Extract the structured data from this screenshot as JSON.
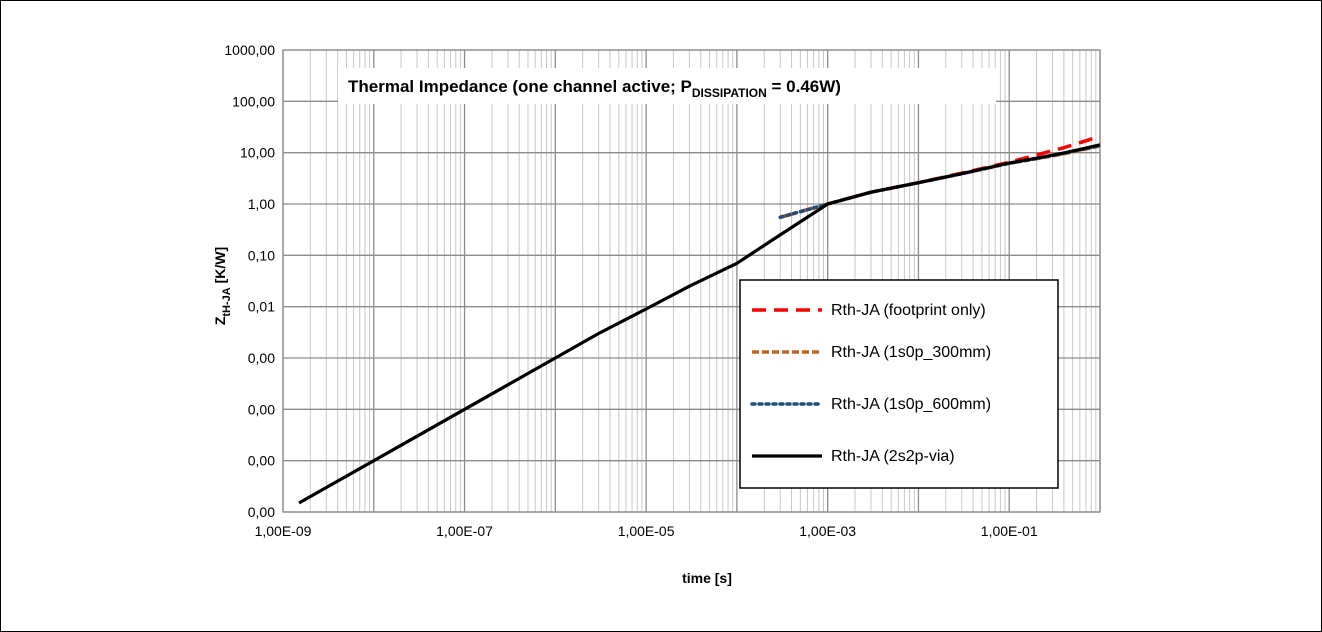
{
  "chart_data": {
    "type": "line",
    "title": {
      "main": "Thermal Impedance (one channel active; P",
      "sub": "DISSIPATION",
      "tail": " = 0.46W)"
    },
    "xlabel": "time  [s]",
    "ylabel": {
      "main": "Z",
      "sub": "tH-JA",
      "tail": " [K/W]"
    },
    "x_scale": "log",
    "y_scale": "log",
    "xlim": [
      1e-09,
      1
    ],
    "ylim": [
      1e-06,
      1000
    ],
    "x_tick_labels": [
      "1,00E-09",
      "1,00E-07",
      "1,00E-05",
      "1,00E-03",
      "1,00E-01"
    ],
    "x_tick_values": [
      1e-09,
      1e-07,
      1e-05,
      0.001,
      0.1
    ],
    "y_tick_labels": [
      "1000,00",
      "100,00",
      "10,00",
      "1,00",
      "0,10",
      "0,01",
      "0,00",
      "0,00",
      "0,00",
      "0,00"
    ],
    "y_tick_values": [
      1000,
      100,
      10,
      1,
      0.1,
      0.01,
      0.001,
      0.0001,
      1e-05,
      1e-06
    ],
    "grid": true,
    "legend_position": "right",
    "series": [
      {
        "name": "Rth-JA (footprint only)",
        "color": "#ff0000",
        "style": "dashed",
        "x": [
          0.0003,
          0.001,
          0.003,
          0.01,
          0.03,
          0.1,
          0.2,
          0.4,
          0.7,
          1.0
        ],
        "y": [
          0.55,
          1.0,
          1.7,
          2.6,
          4.0,
          6.5,
          9.0,
          12.5,
          17.0,
          21.0
        ]
      },
      {
        "name": "Rth-JA (1s0p_300mm)",
        "color": "#c0651e",
        "style": "short-dash",
        "x": [
          0.0003,
          0.001,
          0.003,
          0.01,
          0.03,
          0.1,
          0.2,
          0.4,
          0.7,
          1.0
        ],
        "y": [
          0.55,
          1.0,
          1.7,
          2.6,
          3.9,
          6.2,
          7.6,
          9.5,
          11.8,
          13.5
        ]
      },
      {
        "name": "Rth-JA (1s0p_600mm)",
        "color": "#1f4e79",
        "style": "dotted",
        "x": [
          0.0003,
          0.001,
          0.003,
          0.01,
          0.03,
          0.1,
          0.2,
          0.4,
          0.7,
          1.0
        ],
        "y": [
          0.55,
          1.0,
          1.7,
          2.6,
          3.9,
          6.2,
          7.7,
          9.7,
          12.0,
          13.8
        ]
      },
      {
        "name": "Rth-JA (2s2p-via)",
        "color": "#000000",
        "style": "solid",
        "x": [
          1.5e-09,
          3e-09,
          1e-08,
          3e-08,
          1e-07,
          3e-07,
          1e-06,
          3e-06,
          1e-05,
          3e-05,
          0.0001,
          0.0003,
          0.001,
          0.003,
          0.01,
          0.03,
          0.1,
          0.2,
          0.4,
          0.7,
          1.0
        ],
        "y": [
          1.5e-06,
          3e-06,
          1e-05,
          3e-05,
          0.0001,
          0.0003,
          0.001,
          0.003,
          0.009,
          0.025,
          0.07,
          0.25,
          1.0,
          1.7,
          2.6,
          3.9,
          6.3,
          7.8,
          9.9,
          12.3,
          14.2
        ]
      }
    ]
  }
}
